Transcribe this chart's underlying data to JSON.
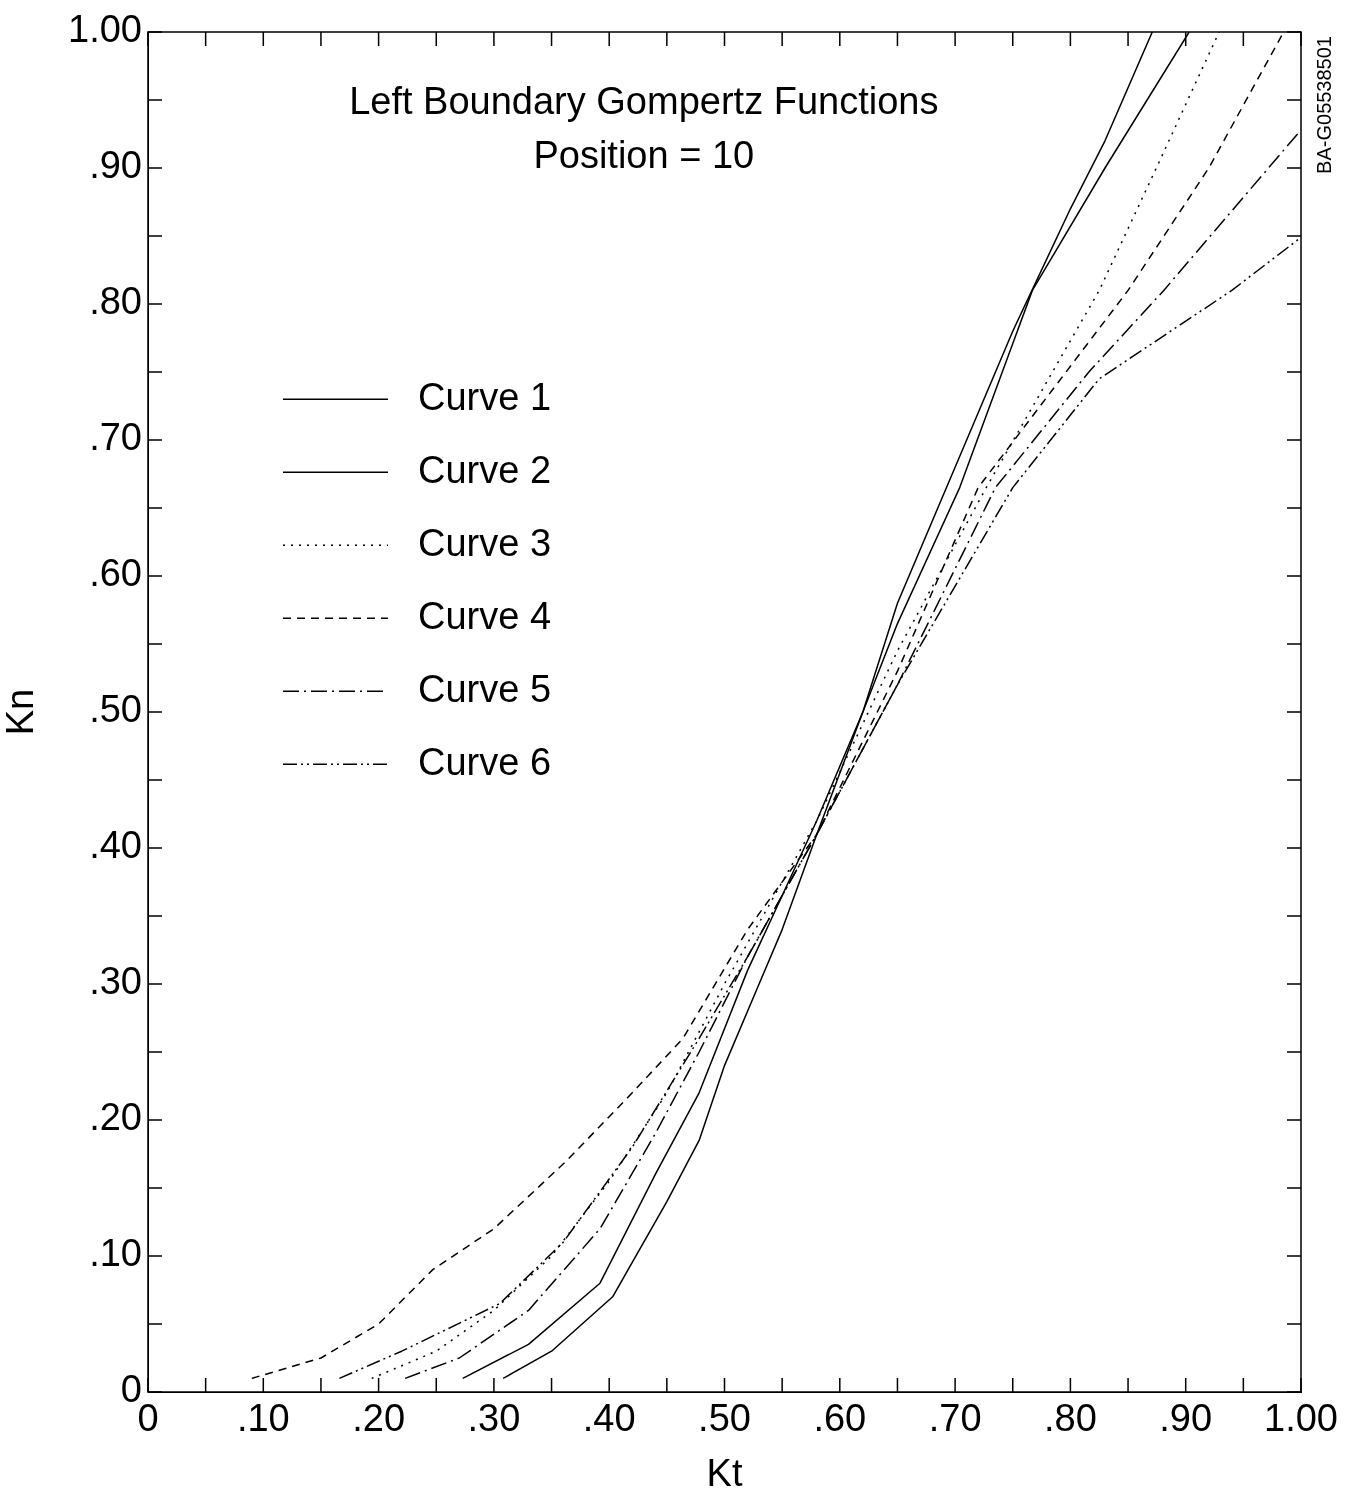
{
  "chart_data": {
    "type": "line",
    "title": "Left Boundary Gompertz Functions",
    "subtitle": "Position = 10",
    "xlabel": "Kt",
    "ylabel": "Kn",
    "annotations": [
      "BA-G05538501"
    ],
    "xlim": [
      0,
      1
    ],
    "ylim": [
      0,
      1
    ],
    "xticks": [
      {
        "value": 0,
        "label": "0"
      },
      {
        "value": 0.05,
        "label": null
      },
      {
        "value": 0.1,
        "label": ".10"
      },
      {
        "value": 0.15,
        "label": null
      },
      {
        "value": 0.2,
        "label": ".20"
      },
      {
        "value": 0.25,
        "label": null
      },
      {
        "value": 0.3,
        "label": ".30"
      },
      {
        "value": 0.35,
        "label": null
      },
      {
        "value": 0.4,
        "label": ".40"
      },
      {
        "value": 0.45,
        "label": null
      },
      {
        "value": 0.5,
        "label": ".50"
      },
      {
        "value": 0.55,
        "label": null
      },
      {
        "value": 0.6,
        "label": ".60"
      },
      {
        "value": 0.65,
        "label": null
      },
      {
        "value": 0.7,
        "label": ".70"
      },
      {
        "value": 0.75,
        "label": null
      },
      {
        "value": 0.8,
        "label": ".80"
      },
      {
        "value": 0.85,
        "label": null
      },
      {
        "value": 0.9,
        "label": ".90"
      },
      {
        "value": 0.95,
        "label": null
      },
      {
        "value": 1,
        "label": "1.00"
      }
    ],
    "yticks": [
      {
        "value": 0,
        "label": "0"
      },
      {
        "value": 0.05,
        "label": null
      },
      {
        "value": 0.1,
        "label": ".10"
      },
      {
        "value": 0.15,
        "label": null
      },
      {
        "value": 0.2,
        "label": ".20"
      },
      {
        "value": 0.25,
        "label": null
      },
      {
        "value": 0.3,
        "label": ".30"
      },
      {
        "value": 0.35,
        "label": null
      },
      {
        "value": 0.4,
        "label": ".40"
      },
      {
        "value": 0.45,
        "label": null
      },
      {
        "value": 0.5,
        "label": ".50"
      },
      {
        "value": 0.55,
        "label": null
      },
      {
        "value": 0.6,
        "label": ".60"
      },
      {
        "value": 0.65,
        "label": null
      },
      {
        "value": 0.7,
        "label": ".70"
      },
      {
        "value": 0.75,
        "label": null
      },
      {
        "value": 0.8,
        "label": ".80"
      },
      {
        "value": 0.85,
        "label": null
      },
      {
        "value": 0.9,
        "label": ".90"
      },
      {
        "value": 0.95,
        "label": null
      },
      {
        "value": 1,
        "label": "1.00"
      }
    ],
    "grid": false,
    "legend": "top left",
    "marker": "none",
    "series": [
      {
        "name": "Curve 1",
        "color": "#000000",
        "line_style": "solid",
        "x": [
          0.308,
          0.35,
          0.403,
          0.45,
          0.478,
          0.5,
          0.55,
          0.58,
          0.62,
          0.65,
          0.7,
          0.75,
          0.8,
          0.83,
          0.871
        ],
        "values": [
          0.01,
          0.03,
          0.07,
          0.14,
          0.185,
          0.24,
          0.34,
          0.41,
          0.5,
          0.58,
          0.68,
          0.78,
          0.87,
          0.92,
          1.0
        ]
      },
      {
        "name": "Curve 2",
        "color": "#000000",
        "line_style": "solid",
        "x": [
          0.273,
          0.33,
          0.392,
          0.44,
          0.478,
          0.52,
          0.58,
          0.62,
          0.65,
          0.704,
          0.767,
          0.83,
          0.903
        ],
        "values": [
          0.01,
          0.035,
          0.08,
          0.16,
          0.22,
          0.31,
          0.42,
          0.5,
          0.565,
          0.665,
          0.81,
          0.9,
          1.0
        ]
      },
      {
        "name": "Curve 3",
        "color": "#000000",
        "line_style": "dotted",
        "x": [
          0.194,
          0.25,
          0.3,
          0.35,
          0.4,
          0.45,
          0.5,
          0.58,
          0.65,
          0.727,
          0.825,
          0.88,
          0.929
        ],
        "values": [
          0.01,
          0.03,
          0.06,
          0.1,
          0.155,
          0.22,
          0.3,
          0.42,
          0.545,
          0.665,
          0.81,
          0.91,
          1.0
        ]
      },
      {
        "name": "Curve 4",
        "color": "#000000",
        "line_style": "dashed",
        "x": [
          0.09,
          0.15,
          0.2,
          0.247,
          0.3,
          0.363,
          0.42,
          0.464,
          0.52,
          0.58,
          0.65,
          0.72,
          0.85,
          0.92,
          0.985
        ],
        "values": [
          0.01,
          0.025,
          0.05,
          0.09,
          0.12,
          0.17,
          0.22,
          0.26,
          0.34,
          0.41,
          0.53,
          0.665,
          0.81,
          0.9,
          1.0
        ]
      },
      {
        "name": "Curve 5",
        "color": "#000000",
        "line_style": "dashdot",
        "x": [
          0.223,
          0.27,
          0.33,
          0.392,
          0.44,
          0.478,
          0.52,
          0.58,
          0.65,
          0.735,
          0.816,
          0.881,
          1.0
        ],
        "values": [
          0.01,
          0.025,
          0.06,
          0.12,
          0.19,
          0.25,
          0.32,
          0.41,
          0.52,
          0.665,
          0.75,
          0.81,
          0.928
        ]
      },
      {
        "name": "Curve 6",
        "color": "#000000",
        "line_style": "dashdotdot",
        "x": [
          0.166,
          0.22,
          0.305,
          0.36,
          0.42,
          0.478,
          0.52,
          0.58,
          0.65,
          0.75,
          0.825,
          0.94,
          1.0
        ],
        "values": [
          0.01,
          0.03,
          0.065,
          0.11,
          0.18,
          0.26,
          0.32,
          0.41,
          0.52,
          0.665,
          0.745,
          0.81,
          0.849
        ]
      }
    ]
  }
}
